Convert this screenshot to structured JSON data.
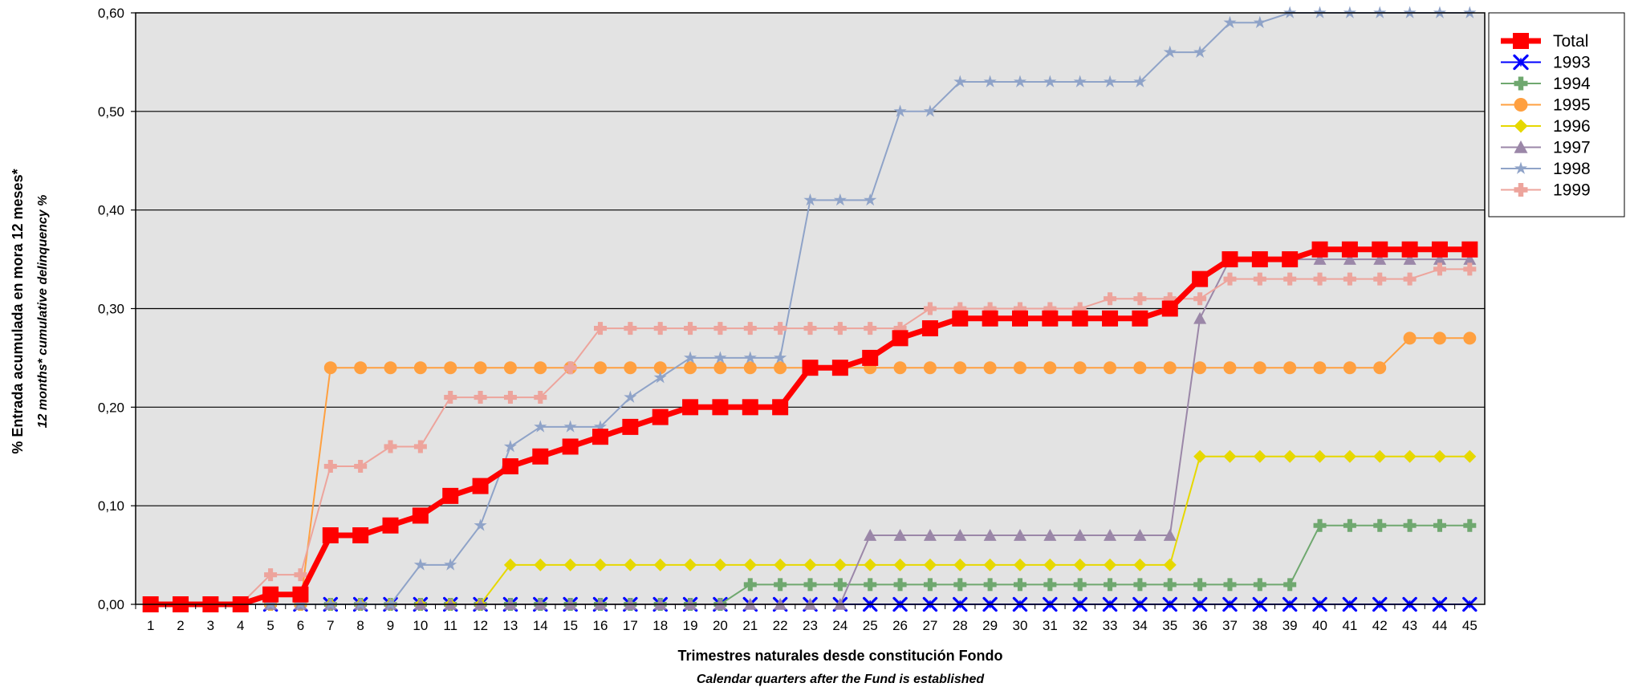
{
  "chart_data": {
    "type": "line",
    "xlabel": "Trimestres naturales desde constitución Fondo",
    "xlabel_sub": "Calendar quarters after the Fund is established",
    "ylabel": "% Entrada acumulada en mora 12 meses*",
    "ylabel_sub": "12 months* cumulative delinquency %",
    "x": [
      1,
      2,
      3,
      4,
      5,
      6,
      7,
      8,
      9,
      10,
      11,
      12,
      13,
      14,
      15,
      16,
      17,
      18,
      19,
      20,
      21,
      22,
      23,
      24,
      25,
      26,
      27,
      28,
      29,
      30,
      31,
      32,
      33,
      34,
      35,
      36,
      37,
      38,
      39,
      40,
      41,
      42,
      43,
      44,
      45
    ],
    "ylim": [
      0,
      0.6
    ],
    "yticks": [
      "0,00",
      "0,10",
      "0,20",
      "0,30",
      "0,40",
      "0,50",
      "0,60"
    ],
    "grid": "horizontal",
    "background": "#e3e3e3",
    "legend_position": "top-right",
    "series": [
      {
        "name": "Total",
        "color": "#ff0000",
        "marker": "square",
        "values": [
          0,
          0,
          0,
          0,
          0.01,
          0.01,
          0.07,
          0.07,
          0.08,
          0.09,
          0.11,
          0.12,
          0.14,
          0.15,
          0.16,
          0.17,
          0.18,
          0.19,
          0.2,
          0.2,
          0.2,
          0.2,
          0.24,
          0.24,
          0.25,
          0.27,
          0.28,
          0.29,
          0.29,
          0.29,
          0.29,
          0.29,
          0.29,
          0.29,
          0.3,
          0.33,
          0.35,
          0.35,
          0.35,
          0.36,
          0.36,
          0.36,
          0.36,
          0.36,
          0.36
        ]
      },
      {
        "name": "1993",
        "color": "#0000ff",
        "marker": "star-x",
        "values": [
          0,
          0,
          0,
          0,
          0,
          0,
          0,
          0,
          0,
          0,
          0,
          0,
          0,
          0,
          0,
          0,
          0,
          0,
          0,
          0,
          0,
          0,
          0,
          0,
          0,
          0,
          0,
          0,
          0,
          0,
          0,
          0,
          0,
          0,
          0,
          0,
          0,
          0,
          0,
          0,
          0,
          0,
          0,
          0,
          0
        ]
      },
      {
        "name": "1994",
        "color": "#6fa86f",
        "marker": "plus",
        "values": [
          0,
          0,
          0,
          0,
          0,
          0,
          0,
          0,
          0,
          0,
          0,
          0,
          0,
          0,
          0,
          0,
          0,
          0,
          0,
          0,
          0.02,
          0.02,
          0.02,
          0.02,
          0.02,
          0.02,
          0.02,
          0.02,
          0.02,
          0.02,
          0.02,
          0.02,
          0.02,
          0.02,
          0.02,
          0.02,
          0.02,
          0.02,
          0.02,
          0.08,
          0.08,
          0.08,
          0.08,
          0.08,
          0.08
        ]
      },
      {
        "name": "1995",
        "color": "#ffa040",
        "marker": "circle",
        "values": [
          0,
          0,
          0,
          0,
          0,
          0,
          0.24,
          0.24,
          0.24,
          0.24,
          0.24,
          0.24,
          0.24,
          0.24,
          0.24,
          0.24,
          0.24,
          0.24,
          0.24,
          0.24,
          0.24,
          0.24,
          0.24,
          0.24,
          0.24,
          0.24,
          0.24,
          0.24,
          0.24,
          0.24,
          0.24,
          0.24,
          0.24,
          0.24,
          0.24,
          0.24,
          0.24,
          0.24,
          0.24,
          0.24,
          0.24,
          0.24,
          0.27,
          0.27,
          0.27
        ]
      },
      {
        "name": "1996",
        "color": "#e6d800",
        "marker": "diamond",
        "values": [
          0,
          0,
          0,
          0,
          0,
          0,
          0,
          0,
          0,
          0,
          0,
          0,
          0.04,
          0.04,
          0.04,
          0.04,
          0.04,
          0.04,
          0.04,
          0.04,
          0.04,
          0.04,
          0.04,
          0.04,
          0.04,
          0.04,
          0.04,
          0.04,
          0.04,
          0.04,
          0.04,
          0.04,
          0.04,
          0.04,
          0.04,
          0.15,
          0.15,
          0.15,
          0.15,
          0.15,
          0.15,
          0.15,
          0.15,
          0.15,
          0.15
        ]
      },
      {
        "name": "1997",
        "color": "#9b87a8",
        "marker": "triangle",
        "values": [
          0,
          0,
          0,
          0,
          0,
          0,
          0,
          0,
          0,
          0,
          0,
          0,
          0,
          0,
          0,
          0,
          0,
          0,
          0,
          0,
          0,
          0,
          0,
          0,
          0.07,
          0.07,
          0.07,
          0.07,
          0.07,
          0.07,
          0.07,
          0.07,
          0.07,
          0.07,
          0.07,
          0.29,
          0.35,
          0.35,
          0.35,
          0.35,
          0.35,
          0.35,
          0.35,
          0.35,
          0.35
        ]
      },
      {
        "name": "1998",
        "color": "#8fa3c8",
        "marker": "star",
        "values": [
          0,
          0,
          0,
          0,
          0,
          0,
          0,
          0,
          0,
          0.04,
          0.04,
          0.08,
          0.16,
          0.18,
          0.18,
          0.18,
          0.21,
          0.23,
          0.25,
          0.25,
          0.25,
          0.25,
          0.41,
          0.41,
          0.41,
          0.5,
          0.5,
          0.53,
          0.53,
          0.53,
          0.53,
          0.53,
          0.53,
          0.53,
          0.56,
          0.56,
          0.59,
          0.59,
          0.6,
          0.6,
          0.6,
          0.6,
          0.6,
          0.6,
          0.6
        ]
      },
      {
        "name": "1999",
        "color": "#eda49c",
        "marker": "cross",
        "values": [
          0,
          0,
          0,
          0,
          0.03,
          0.03,
          0.14,
          0.14,
          0.16,
          0.16,
          0.21,
          0.21,
          0.21,
          0.21,
          0.24,
          0.28,
          0.28,
          0.28,
          0.28,
          0.28,
          0.28,
          0.28,
          0.28,
          0.28,
          0.28,
          0.28,
          0.3,
          0.3,
          0.3,
          0.3,
          0.3,
          0.3,
          0.31,
          0.31,
          0.31,
          0.31,
          0.33,
          0.33,
          0.33,
          0.33,
          0.33,
          0.33,
          0.33,
          0.34,
          0.34
        ]
      }
    ]
  }
}
